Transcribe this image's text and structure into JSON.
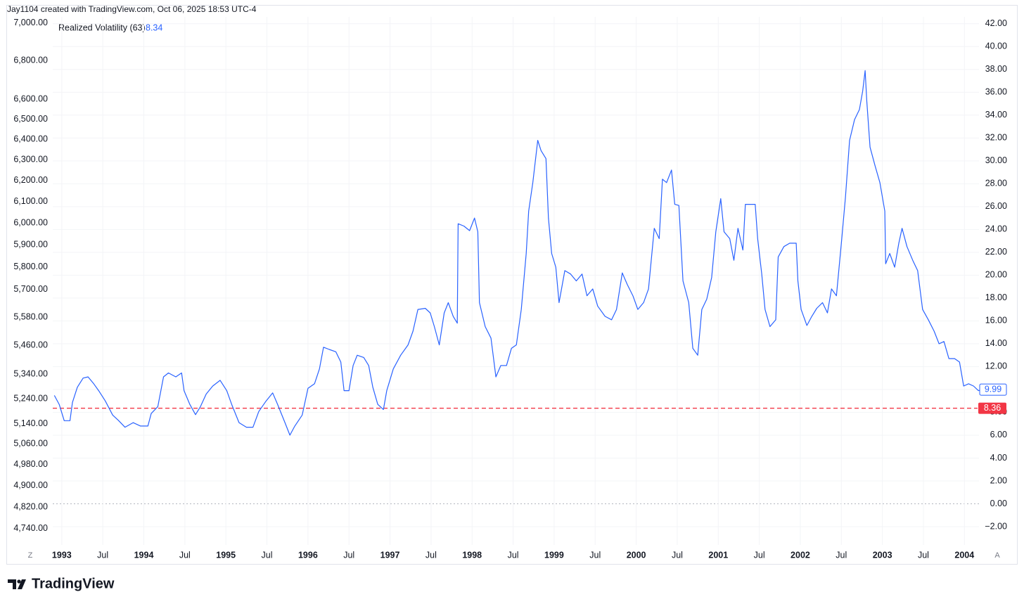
{
  "chart_data": {
    "type": "line",
    "title": "Jay1104 created with TradingView.com, Oct 06, 2025 18:53 UTC-4",
    "brand": "TradingView",
    "scale_buttons": [
      "Z",
      "A"
    ],
    "xlim": [
      1992.89,
      2004.52
    ],
    "xticks": [
      1993,
      {
        "value": 1993.5,
        "label": "Jul"
      },
      1994,
      {
        "value": 1994.5,
        "label": "Jul"
      },
      1995,
      {
        "value": 1995.5,
        "label": "Jul"
      },
      1996,
      {
        "value": 1996.5,
        "label": "Jul"
      },
      1997,
      {
        "value": 1997.5,
        "label": "Jul"
      },
      1998,
      {
        "value": 1998.5,
        "label": "Jul"
      },
      1999,
      {
        "value": 1999.5,
        "label": "Jul"
      },
      2000,
      {
        "value": 2000.5,
        "label": "Jul"
      },
      2001,
      {
        "value": 2001.5,
        "label": "Jul"
      },
      2002,
      {
        "value": 2002.5,
        "label": "Jul"
      },
      2003,
      {
        "value": 2003.5,
        "label": "Jul"
      },
      2004
    ],
    "ylim": [
      4681,
      7034
    ],
    "y_log": true,
    "yticks": [
      {
        "value": 7000,
        "label": "7,000.00"
      },
      {
        "value": 6800,
        "label": "6,800.00"
      },
      {
        "value": 6600,
        "label": "6,600.00"
      },
      {
        "value": 6500,
        "label": "6,500.00"
      },
      {
        "value": 6400,
        "label": "6,400.00"
      },
      {
        "value": 6300,
        "label": "6,300.00"
      },
      {
        "value": 6200,
        "label": "6,200.00"
      },
      {
        "value": 6100,
        "label": "6,100.00"
      },
      {
        "value": 6000,
        "label": "6,000.00"
      },
      {
        "value": 5900,
        "label": "5,900.00"
      },
      {
        "value": 5800,
        "label": "5,800.00"
      },
      {
        "value": 5700,
        "label": "5,700.00"
      },
      {
        "value": 5580,
        "label": "5,580.00"
      },
      {
        "value": 5460,
        "label": "5,460.00"
      },
      {
        "value": 5340,
        "label": "5,340.00"
      },
      {
        "value": 5240,
        "label": "5,240.00"
      },
      {
        "value": 5140,
        "label": "5,140.00"
      },
      {
        "value": 5060,
        "label": "5,060.00"
      },
      {
        "value": 4980,
        "label": "4,980.00"
      },
      {
        "value": 4900,
        "label": "4,900.00"
      },
      {
        "value": 4820,
        "label": "4,820.00"
      },
      {
        "value": 4740,
        "label": "4,740.00"
      }
    ],
    "y2lim": [
      -3.6,
      42.6
    ],
    "y2ticks": [
      {
        "value": 42,
        "label": "42.00"
      },
      {
        "value": 40,
        "label": "40.00"
      },
      {
        "value": 38,
        "label": "38.00"
      },
      {
        "value": 36,
        "label": "36.00"
      },
      {
        "value": 34,
        "label": "34.00"
      },
      {
        "value": 32,
        "label": "32.00"
      },
      {
        "value": 30,
        "label": "30.00"
      },
      {
        "value": 28,
        "label": "28.00"
      },
      {
        "value": 26,
        "label": "26.00"
      },
      {
        "value": 24,
        "label": "24.00"
      },
      {
        "value": 22,
        "label": "22.00"
      },
      {
        "value": 20,
        "label": "20.00"
      },
      {
        "value": 18,
        "label": "18.00"
      },
      {
        "value": 16,
        "label": "16.00"
      },
      {
        "value": 14,
        "label": "14.00"
      },
      {
        "value": 12,
        "label": "12.00"
      },
      {
        "value": 10,
        "label": "10.00"
      },
      {
        "value": 8,
        "label": "8.00"
      },
      {
        "value": 6,
        "label": "6.00"
      },
      {
        "value": 4,
        "label": "4.00"
      },
      {
        "value": 2,
        "label": "2.00"
      },
      {
        "value": 0,
        "label": "0.00"
      },
      {
        "value": -2,
        "label": "−2.00"
      }
    ],
    "grid": true,
    "reference_line": {
      "value": 8.36,
      "color": "#f23645"
    },
    "x": [
      1992.91,
      1992.97,
      1993.03,
      1993.1,
      1993.13,
      1993.19,
      1993.26,
      1993.32,
      1993.39,
      1993.45,
      1993.53,
      1993.62,
      1993.69,
      1993.77,
      1993.87,
      1993.96,
      1994.05,
      1994.09,
      1994.17,
      1994.24,
      1994.3,
      1994.39,
      1994.46,
      1994.49,
      1994.56,
      1994.63,
      1994.69,
      1994.76,
      1994.84,
      1994.93,
      1995.01,
      1995.07,
      1995.16,
      1995.25,
      1995.33,
      1995.4,
      1995.49,
      1995.57,
      1995.63,
      1995.72,
      1995.78,
      1995.84,
      1995.93,
      1996.0,
      1996.08,
      1996.14,
      1996.19,
      1996.26,
      1996.34,
      1996.4,
      1996.44,
      1996.5,
      1996.55,
      1996.6,
      1996.68,
      1996.74,
      1996.79,
      1996.85,
      1996.92,
      1996.96,
      1997.04,
      1997.13,
      1997.22,
      1997.28,
      1997.34,
      1997.43,
      1997.49,
      1997.54,
      1997.6,
      1997.66,
      1997.71,
      1997.77,
      1997.82,
      1997.83,
      1997.9,
      1997.97,
      1998.03,
      1998.07,
      1998.09,
      1998.16,
      1998.23,
      1998.29,
      1998.35,
      1998.42,
      1998.48,
      1998.54,
      1998.6,
      1998.66,
      1998.69,
      1998.74,
      1998.8,
      1998.84,
      1998.9,
      1998.93,
      1998.97,
      1999.02,
      1999.06,
      1999.13,
      1999.2,
      1999.27,
      1999.34,
      1999.4,
      1999.47,
      1999.53,
      1999.62,
      1999.7,
      1999.76,
      1999.83,
      1999.89,
      1999.96,
      2000.02,
      2000.09,
      2000.15,
      2000.22,
      2000.28,
      2000.32,
      2000.37,
      2000.43,
      2000.47,
      2000.52,
      2000.57,
      2000.64,
      2000.69,
      2000.75,
      2000.8,
      2000.86,
      2000.92,
      2000.97,
      2001.03,
      2001.07,
      2001.14,
      2001.19,
      2001.24,
      2001.3,
      2001.33,
      2001.4,
      2001.45,
      2001.48,
      2001.53,
      2001.57,
      2001.63,
      2001.7,
      2001.73,
      2001.8,
      2001.87,
      2001.95,
      2001.97,
      2002.01,
      2002.08,
      2002.14,
      2002.2,
      2002.27,
      2002.33,
      2002.38,
      2002.44,
      2002.5,
      2002.55,
      2002.6,
      2002.66,
      2002.72,
      2002.76,
      2002.79,
      2002.81,
      2002.85,
      2002.91,
      2002.97,
      2003.03,
      2003.04,
      2003.09,
      2003.15,
      2003.2,
      2003.24,
      2003.3,
      2003.37,
      2003.43,
      2003.49,
      2003.56,
      2003.63,
      2003.69,
      2003.75,
      2003.81,
      2003.88,
      2003.94,
      2003.99,
      2004.05,
      2004.11,
      2004.17,
      2004.24,
      2004.5
    ],
    "series": [
      {
        "name": "Realized Volatility (63)",
        "legend_value": "8.34",
        "color": "#2962ff",
        "axis": "y2",
        "last_value": 9.99,
        "values": [
          9.48,
          8.68,
          7.27,
          7.27,
          8.87,
          10.2,
          11.0,
          11.1,
          10.5,
          9.9,
          9.0,
          7.76,
          7.3,
          6.7,
          7.1,
          6.8,
          6.8,
          7.9,
          8.5,
          11.1,
          11.45,
          11.1,
          11.45,
          9.9,
          8.7,
          7.8,
          8.5,
          9.6,
          10.3,
          10.8,
          9.9,
          8.7,
          7.1,
          6.7,
          6.7,
          8.07,
          9.0,
          9.7,
          8.7,
          7.1,
          6.0,
          6.8,
          7.76,
          10.1,
          10.5,
          11.8,
          13.7,
          13.5,
          13.3,
          12.4,
          9.9,
          9.9,
          12.1,
          13.0,
          12.8,
          12.1,
          10.2,
          8.7,
          8.25,
          9.9,
          11.8,
          13.0,
          13.9,
          15.1,
          17.0,
          17.1,
          16.7,
          15.5,
          13.9,
          16.7,
          17.6,
          16.4,
          15.8,
          24.5,
          24.3,
          23.9,
          25.0,
          23.8,
          17.6,
          15.5,
          14.5,
          11.1,
          12.1,
          12.1,
          13.6,
          13.9,
          17.0,
          21.9,
          25.6,
          28.1,
          31.8,
          30.9,
          30.2,
          25.0,
          21.9,
          20.7,
          17.6,
          20.4,
          20.1,
          19.5,
          20.1,
          18.2,
          18.8,
          17.3,
          16.4,
          16.1,
          17.0,
          20.2,
          19.2,
          18.2,
          17.0,
          17.6,
          18.8,
          24.1,
          23.2,
          28.4,
          28.1,
          29.2,
          26.2,
          26.1,
          19.5,
          17.6,
          13.6,
          13.0,
          17.0,
          17.9,
          19.8,
          23.8,
          26.7,
          23.8,
          23.2,
          21.3,
          24.1,
          22.2,
          26.2,
          26.2,
          26.2,
          23.2,
          20.1,
          17.0,
          15.5,
          16.1,
          21.6,
          22.5,
          22.8,
          22.8,
          19.5,
          17.0,
          15.6,
          16.4,
          17.1,
          17.6,
          16.7,
          18.8,
          18.2,
          22.8,
          26.8,
          31.8,
          33.6,
          34.5,
          36.1,
          37.9,
          35.2,
          31.2,
          29.6,
          28.1,
          25.6,
          21.0,
          21.9,
          20.7,
          22.8,
          24.1,
          22.5,
          21.3,
          20.4,
          17.0,
          16.1,
          15.1,
          14.0,
          14.2,
          12.7,
          12.7,
          12.4,
          10.3,
          10.5,
          10.3,
          9.9,
          10.0,
          9.99
        ]
      }
    ]
  }
}
